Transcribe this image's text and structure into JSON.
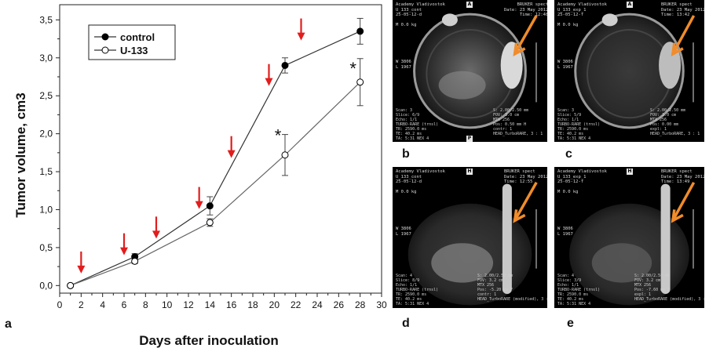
{
  "chart_data": {
    "type": "line",
    "xlabel": "Days after inoculation",
    "ylabel": "Tumor   volume, cm3",
    "xlim": [
      0,
      30
    ],
    "ylim": [
      -0.1,
      3.7
    ],
    "x_ticks": [
      "0",
      "2",
      "4",
      "6",
      "8",
      "10",
      "12",
      "14",
      "16",
      "18",
      "20",
      "22",
      "24",
      "26",
      "28",
      "30"
    ],
    "y_ticks": [
      "0,0",
      "0,5",
      "1,0",
      "1,5",
      "2,0",
      "2,5",
      "3,0",
      "3,5"
    ],
    "series": [
      {
        "name": "control",
        "marker": "filled-circle",
        "color": "#000000",
        "x": [
          1,
          7,
          14,
          21,
          28
        ],
        "y": [
          0.0,
          0.38,
          1.05,
          2.9,
          3.35
        ],
        "err": [
          0.0,
          0.04,
          0.12,
          0.1,
          0.17
        ]
      },
      {
        "name": "U-133",
        "marker": "open-circle",
        "color": "#555555",
        "x": [
          1,
          7,
          14,
          21,
          28
        ],
        "y": [
          0.0,
          0.32,
          0.83,
          1.72,
          2.68
        ],
        "err": [
          0.0,
          0.03,
          0.05,
          0.27,
          0.31
        ]
      }
    ],
    "arrows": [
      {
        "x": 2,
        "y": 0.18
      },
      {
        "x": 6,
        "y": 0.42
      },
      {
        "x": 9,
        "y": 0.64
      },
      {
        "x": 13,
        "y": 1.03
      },
      {
        "x": 16,
        "y": 1.7
      },
      {
        "x": 19.5,
        "y": 2.65
      },
      {
        "x": 22.5,
        "y": 3.25
      }
    ],
    "significance": [
      {
        "text": "*",
        "x": 21,
        "y": 1.92
      },
      {
        "text": "*",
        "x": 28,
        "y": 2.8
      }
    ],
    "legend_position": "top-left",
    "panel_label": "a",
    "arrow_color": "#e11d1d"
  },
  "panels": [
    {
      "label": "b",
      "title": "Academy Vladivostok\nU_133_cont\n25-05-12-d\n\nM 0.0 kg",
      "right": "BRUKER spect\nDate: 23 May 2012\nTime: 12:48",
      "footer_left": "Scan: 3\nSlice: 6/9\nEcho: 1/1\nTURBO-RARE (trnsl)\nTR: 2590.0 ms\nTE: 40.2 ms\nTA: 5:31 NEX 4",
      "footer_right": "S: 2.00/2.50 mm\nFOV: 3.0 cm\nMTX 256\nPos: 0.50 mm H\ncontr: 1\nHEAD_TurboRARE, 3 : 1",
      "wl": "W 3806\nL 1967"
    },
    {
      "label": "c",
      "title": "Academy Vladivostok\nU_133_exp_1\n25-05-12-f\n\nM 0.0 kg",
      "right": "BRUKER spect\nDate: 23 May 2012\nTime: 13:42",
      "footer_left": "Scan: 3\nSlice: 5/9\nEcho: 1/1\nTURBO-RARE (trnsl)\nTR: 2590.0 ms\nTE: 40.2 ms\nTA: 5:31 NEX 4",
      "footer_right": "S: 2.00/2.50 mm\nFOV: 3.0 cm\nMTX 256\nPos: 0.00 mm\nexpl: 1\nHEAD_TurboRARE, 3 : 1",
      "wl": "W 3806\nL 1967"
    },
    {
      "label": "d",
      "title": "Academy Vladivostok\nU_133_cont\n25-05-12-d\n\nM 0.0 kg",
      "right": "BRUKER spect\nDate: 23 May 2012\nTime: 12:55",
      "footer_left": "Scan: 4\nSlice: 8/9\nEcho: 1/1\nTURBO-RARE (trnsl)\nTR: 2590.0 ms\nTE: 40.2 ms\nTA: 5:31 NEX 4",
      "footer_right": "S: 2.00/2.50 mm\nFOV: 3.2 cm\nMTX 256\nPos: -5.20 mm F\ncontr: 1\nHEAD_TurboRARE (modified), 3 : 1",
      "wl": "W 3806\nL 1967"
    },
    {
      "label": "e",
      "title": "Academy Vladivostok\nU_133_exp_1\n25-05-12-f\n\nM 0.0 kg",
      "right": "BRUKER spect\nDate: 23 May 2012\nTime: 13:49",
      "footer_left": "Scan: 4\nSlice: 3/9\nEcho: 1/1\nTURBO-RARE (trnsl)\nTR: 2590.0 ms\nTE: 40.2 ms\nTA: 5:31 NEX 4",
      "footer_right": "S: 2.00/2.50 mm\nFOV: 3.2 cm\nMTX 256\nPos: -7.60 mm F\nexpl: 1\nHEAD_TurboRARE (modified), 3 : 1",
      "wl": "W 3806\nL 1967"
    }
  ],
  "indicator_color": "#f08c2a"
}
